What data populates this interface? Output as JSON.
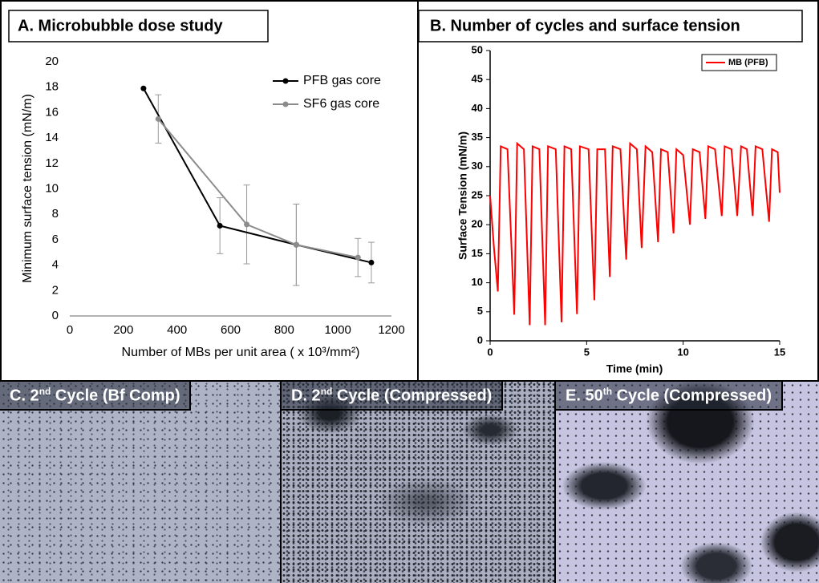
{
  "chart_data": [
    {
      "type": "line",
      "title": "A. Microbubble dose study",
      "x_label": "Number of MBs per unit area ( x 10³/mm²)",
      "y_label": "Minimum surface tension (mN/m)",
      "xlim": [
        0,
        1200
      ],
      "xticks": [
        0,
        200,
        400,
        600,
        800,
        1000,
        1200
      ],
      "ylim": [
        0,
        20
      ],
      "yticks": [
        0,
        2,
        4,
        6,
        8,
        10,
        12,
        14,
        16,
        18,
        20
      ],
      "grid": false,
      "legend": "upper right",
      "series": [
        {
          "name": "PFB gas core",
          "color": "#000000",
          "x": [
            275,
            560,
            845,
            1125
          ],
          "values": [
            17.9,
            7.1,
            5.6,
            4.2
          ],
          "errors": [
            0,
            2.2,
            3.2,
            1.6
          ]
        },
        {
          "name": "SF6 gas core",
          "color": "#8c8c8c",
          "x": [
            330,
            660,
            845,
            1075
          ],
          "values": [
            15.5,
            7.2,
            5.6,
            4.6
          ],
          "errors": [
            1.9,
            3.1,
            3.2,
            1.5
          ]
        }
      ]
    },
    {
      "type": "line",
      "title": "B. Number of cycles and surface tension",
      "x_label": "Time (min)",
      "y_label": "Surface Tension (mN/m)",
      "xlim": [
        0,
        15
      ],
      "xticks": [
        0,
        5,
        10,
        15
      ],
      "ylim": [
        0,
        50
      ],
      "yticks": [
        0,
        5,
        10,
        15,
        20,
        25,
        30,
        35,
        40,
        45,
        50
      ],
      "grid": false,
      "legend": "upper right",
      "series": [
        {
          "name": "MB (PFB)",
          "color": "#ff0000",
          "x": [
            0,
            0.2,
            0.4,
            0.55,
            0.9,
            1.25,
            1.4,
            1.75,
            2.05,
            2.2,
            2.55,
            2.85,
            3.0,
            3.4,
            3.7,
            3.85,
            4.2,
            4.5,
            4.65,
            5.1,
            5.4,
            5.55,
            5.95,
            6.2,
            6.35,
            6.75,
            7.05,
            7.25,
            7.6,
            7.85,
            8.05,
            8.4,
            8.7,
            8.85,
            9.2,
            9.5,
            9.65,
            10.0,
            10.35,
            10.5,
            10.85,
            11.15,
            11.3,
            11.65,
            12.0,
            12.15,
            12.5,
            12.8,
            13.0,
            13.3,
            13.6,
            13.75,
            14.1,
            14.45,
            14.6,
            14.9,
            15
          ],
          "values": [
            25,
            16,
            8.5,
            33.5,
            33,
            4.5,
            34,
            33,
            2.7,
            33.5,
            33,
            2.7,
            33.5,
            33,
            3.2,
            33.5,
            33,
            4.6,
            33.5,
            33,
            7,
            33,
            33,
            11,
            33.5,
            33,
            14,
            34,
            33,
            16,
            33.5,
            32.5,
            17,
            33,
            32.5,
            18.5,
            33,
            32,
            20,
            33,
            32.5,
            21,
            33.5,
            33,
            21.5,
            33.5,
            33,
            21.5,
            33.5,
            33,
            21.5,
            33.5,
            33,
            20.5,
            33,
            32.5,
            25.5
          ]
        }
      ]
    }
  ],
  "panels": [
    {
      "prefix": "C. 2",
      "sup": "nd",
      "suffix": " Cycle (Bf Comp)"
    },
    {
      "prefix": "D. 2",
      "sup": "nd",
      "suffix": " Cycle (Compressed)"
    },
    {
      "prefix": "E. 50",
      "sup": "th",
      "suffix": " Cycle (Compressed)"
    }
  ]
}
